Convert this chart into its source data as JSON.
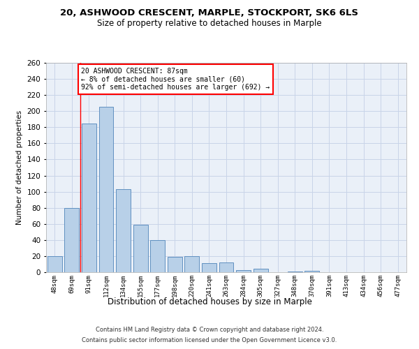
{
  "title1": "20, ASHWOOD CRESCENT, MARPLE, STOCKPORT, SK6 6LS",
  "title2": "Size of property relative to detached houses in Marple",
  "xlabel": "Distribution of detached houses by size in Marple",
  "ylabel": "Number of detached properties",
  "categories": [
    "48sqm",
    "69sqm",
    "91sqm",
    "112sqm",
    "134sqm",
    "155sqm",
    "177sqm",
    "198sqm",
    "220sqm",
    "241sqm",
    "263sqm",
    "284sqm",
    "305sqm",
    "327sqm",
    "348sqm",
    "370sqm",
    "391sqm",
    "413sqm",
    "434sqm",
    "456sqm",
    "477sqm"
  ],
  "values": [
    20,
    80,
    185,
    205,
    103,
    59,
    40,
    19,
    20,
    11,
    12,
    3,
    4,
    0,
    1,
    2,
    0,
    0,
    0,
    0,
    0
  ],
  "bar_color": "#b8d0e8",
  "bar_edge_color": "#6090c0",
  "annotation_text": "20 ASHWOOD CRESCENT: 87sqm\n← 8% of detached houses are smaller (60)\n92% of semi-detached houses are larger (692) →",
  "annotation_box_color": "white",
  "annotation_box_edge_color": "red",
  "ylim": [
    0,
    260
  ],
  "yticks": [
    0,
    20,
    40,
    60,
    80,
    100,
    120,
    140,
    160,
    180,
    200,
    220,
    240,
    260
  ],
  "footer1": "Contains HM Land Registry data © Crown copyright and database right 2024.",
  "footer2": "Contains public sector information licensed under the Open Government Licence v3.0.",
  "grid_color": "#c8d4e8",
  "background_color": "#eaf0f8"
}
